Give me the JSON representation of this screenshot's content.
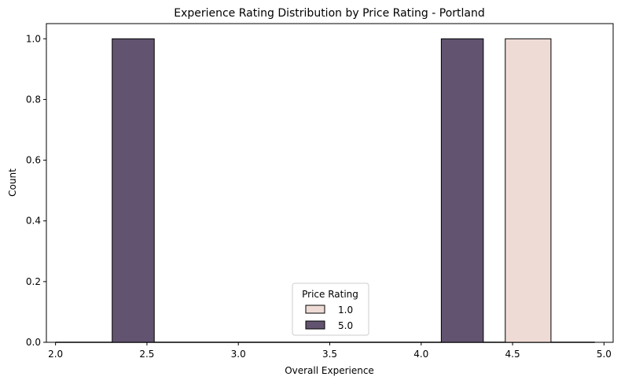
{
  "chart_data": {
    "type": "bar",
    "title": "Experience Rating Distribution by Price Rating - Portland",
    "xlabel": "Overall Experience",
    "ylabel": "Count",
    "xlim": [
      1.95,
      5.05
    ],
    "ylim": [
      0,
      1.05
    ],
    "xticks": [
      "2.0",
      "2.5",
      "3.0",
      "3.5",
      "4.0",
      "4.5",
      "5.0"
    ],
    "yticks": [
      "0.0",
      "0.2",
      "0.4",
      "0.6",
      "0.8",
      "1.0"
    ],
    "grid": false,
    "legend": {
      "title": "Price Rating",
      "placement": "lower center",
      "entries": [
        "1.0",
        "5.0"
      ]
    },
    "series": [
      {
        "name": "1.0",
        "color": "#efdbd6",
        "bars": [
          {
            "x0": 4.46,
            "x1": 4.71,
            "value": 1
          }
        ]
      },
      {
        "name": "5.0",
        "color": "#625470",
        "bars": [
          {
            "x0": 2.31,
            "x1": 2.54,
            "value": 1
          },
          {
            "x0": 4.11,
            "x1": 4.34,
            "value": 1
          }
        ]
      }
    ]
  }
}
